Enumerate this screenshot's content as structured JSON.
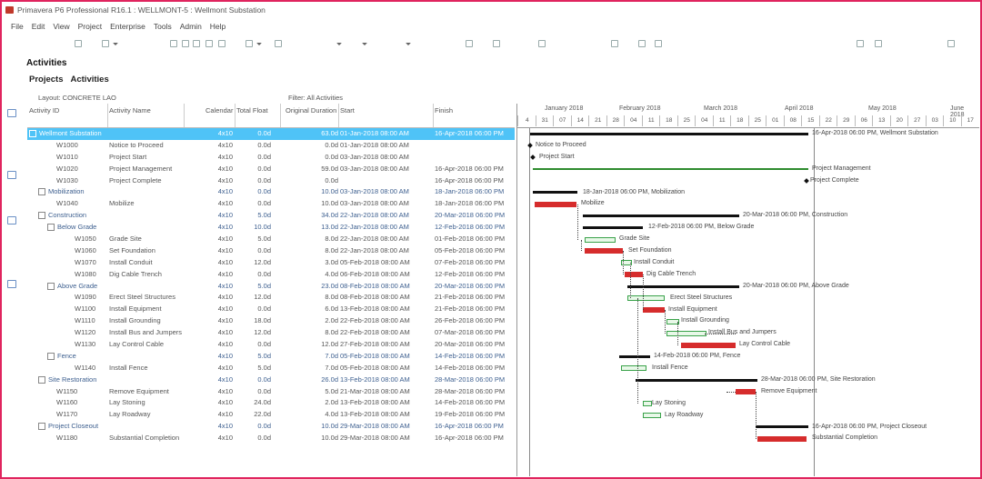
{
  "window": {
    "title": "Primavera P6 Professional R16.1 : WELLMONT-5 : Wellmont Substation"
  },
  "menu": [
    "File",
    "Edit",
    "View",
    "Project",
    "Enterprise",
    "Tools",
    "Admin",
    "Help"
  ],
  "page": {
    "heading": "Activities",
    "tabs": [
      "Projects",
      "Activities"
    ]
  },
  "layout": {
    "label": "Layout: CONCRETE LAO",
    "filter": "Filter: All Activities"
  },
  "columns": {
    "activity_id": "Activity ID",
    "activity_name": "Activity Name",
    "calendar": "Calendar",
    "total_float": "Total Float",
    "original_duration": "Original Duration",
    "start": "Start",
    "finish": "Finish"
  },
  "rows": [
    {
      "id": "Wellmont Substation",
      "name": "",
      "cal": "4x10",
      "tf": "0.0d",
      "od": "63.0d",
      "start": "01-Jan-2018 08:00 AM",
      "finish": "16-Apr-2018 06:00 PM",
      "kind": "project"
    },
    {
      "id": "W1000",
      "name": "Notice to Proceed",
      "cal": "4x10",
      "tf": "0.0d",
      "od": "0.0d",
      "start": "01-Jan-2018 08:00 AM",
      "finish": "",
      "kind": "task"
    },
    {
      "id": "W1010",
      "name": "Project Start",
      "cal": "4x10",
      "tf": "0.0d",
      "od": "0.0d",
      "start": "03-Jan-2018 08:00 AM",
      "finish": "",
      "kind": "task"
    },
    {
      "id": "W1020",
      "name": "Project Management",
      "cal": "4x10",
      "tf": "0.0d",
      "od": "59.0d",
      "start": "03-Jan-2018 08:00 AM",
      "finish": "16-Apr-2018 06:00 PM",
      "kind": "task"
    },
    {
      "id": "W1030",
      "name": "Project Complete",
      "cal": "4x10",
      "tf": "0.0d",
      "od": "0.0d",
      "start": "",
      "finish": "16-Apr-2018 06:00 PM",
      "kind": "task"
    },
    {
      "id": "Mobilization",
      "name": "",
      "cal": "4x10",
      "tf": "0.0d",
      "od": "10.0d",
      "start": "03-Jan-2018 08:00 AM",
      "finish": "18-Jan-2018 06:00 PM",
      "kind": "wbs1"
    },
    {
      "id": "W1040",
      "name": "Mobilize",
      "cal": "4x10",
      "tf": "0.0d",
      "od": "10.0d",
      "start": "03-Jan-2018 08:00 AM",
      "finish": "18-Jan-2018 06:00 PM",
      "kind": "task"
    },
    {
      "id": "Construction",
      "name": "",
      "cal": "4x10",
      "tf": "5.0d",
      "od": "34.0d",
      "start": "22-Jan-2018 08:00 AM",
      "finish": "20-Mar-2018 06:00 PM",
      "kind": "wbs1"
    },
    {
      "id": "Below Grade",
      "name": "",
      "cal": "4x10",
      "tf": "10.0d",
      "od": "13.0d",
      "start": "22-Jan-2018 08:00 AM",
      "finish": "12-Feb-2018 06:00 PM",
      "kind": "wbs2"
    },
    {
      "id": "W1050",
      "name": "Grade Site",
      "cal": "4x10",
      "tf": "5.0d",
      "od": "8.0d",
      "start": "22-Jan-2018 08:00 AM",
      "finish": "01-Feb-2018 06:00 PM",
      "kind": "task2"
    },
    {
      "id": "W1060",
      "name": "Set Foundation",
      "cal": "4x10",
      "tf": "0.0d",
      "od": "8.0d",
      "start": "22-Jan-2018 08:00 AM",
      "finish": "05-Feb-2018 06:00 PM",
      "kind": "task2"
    },
    {
      "id": "W1070",
      "name": "Install Conduit",
      "cal": "4x10",
      "tf": "12.0d",
      "od": "3.0d",
      "start": "05-Feb-2018 08:00 AM",
      "finish": "07-Feb-2018 06:00 PM",
      "kind": "task2"
    },
    {
      "id": "W1080",
      "name": "Dig Cable Trench",
      "cal": "4x10",
      "tf": "0.0d",
      "od": "4.0d",
      "start": "06-Feb-2018 08:00 AM",
      "finish": "12-Feb-2018 06:00 PM",
      "kind": "task2"
    },
    {
      "id": "Above Grade",
      "name": "",
      "cal": "4x10",
      "tf": "5.0d",
      "od": "23.0d",
      "start": "08-Feb-2018 08:00 AM",
      "finish": "20-Mar-2018 06:00 PM",
      "kind": "wbs2"
    },
    {
      "id": "W1090",
      "name": "Erect Steel Structures",
      "cal": "4x10",
      "tf": "12.0d",
      "od": "8.0d",
      "start": "08-Feb-2018 08:00 AM",
      "finish": "21-Feb-2018 06:00 PM",
      "kind": "task2"
    },
    {
      "id": "W1100",
      "name": "Install Equipment",
      "cal": "4x10",
      "tf": "0.0d",
      "od": "6.0d",
      "start": "13-Feb-2018 08:00 AM",
      "finish": "21-Feb-2018 06:00 PM",
      "kind": "task2"
    },
    {
      "id": "W1110",
      "name": "Install Grounding",
      "cal": "4x10",
      "tf": "18.0d",
      "od": "2.0d",
      "start": "22-Feb-2018 08:00 AM",
      "finish": "26-Feb-2018 06:00 PM",
      "kind": "task2"
    },
    {
      "id": "W1120",
      "name": "Install Bus and Jumpers",
      "cal": "4x10",
      "tf": "12.0d",
      "od": "8.0d",
      "start": "22-Feb-2018 08:00 AM",
      "finish": "07-Mar-2018 06:00 PM",
      "kind": "task2"
    },
    {
      "id": "W1130",
      "name": "Lay Control Cable",
      "cal": "4x10",
      "tf": "0.0d",
      "od": "12.0d",
      "start": "27-Feb-2018 08:00 AM",
      "finish": "20-Mar-2018 06:00 PM",
      "kind": "task2"
    },
    {
      "id": "Fence",
      "name": "",
      "cal": "4x10",
      "tf": "5.0d",
      "od": "7.0d",
      "start": "05-Feb-2018 08:00 AM",
      "finish": "14-Feb-2018 06:00 PM",
      "kind": "wbs2"
    },
    {
      "id": "W1140",
      "name": "Install Fence",
      "cal": "4x10",
      "tf": "5.0d",
      "od": "7.0d",
      "start": "05-Feb-2018 08:00 AM",
      "finish": "14-Feb-2018 06:00 PM",
      "kind": "task2"
    },
    {
      "id": "Site Restoration",
      "name": "",
      "cal": "4x10",
      "tf": "0.0d",
      "od": "26.0d",
      "start": "13-Feb-2018 08:00 AM",
      "finish": "28-Mar-2018 06:00 PM",
      "kind": "wbs1"
    },
    {
      "id": "W1150",
      "name": "Remove Equipment",
      "cal": "4x10",
      "tf": "0.0d",
      "od": "5.0d",
      "start": "21-Mar-2018 08:00 AM",
      "finish": "28-Mar-2018 06:00 PM",
      "kind": "task"
    },
    {
      "id": "W1160",
      "name": "Lay Stoning",
      "cal": "4x10",
      "tf": "24.0d",
      "od": "2.0d",
      "start": "13-Feb-2018 08:00 AM",
      "finish": "14-Feb-2018 06:00 PM",
      "kind": "task"
    },
    {
      "id": "W1170",
      "name": "Lay Roadway",
      "cal": "4x10",
      "tf": "22.0d",
      "od": "4.0d",
      "start": "13-Feb-2018 08:00 AM",
      "finish": "19-Feb-2018 06:00 PM",
      "kind": "task"
    },
    {
      "id": "Project Closeout",
      "name": "",
      "cal": "4x10",
      "tf": "0.0d",
      "od": "10.0d",
      "start": "29-Mar-2018 08:00 AM",
      "finish": "16-Apr-2018 06:00 PM",
      "kind": "wbs1"
    },
    {
      "id": "W1180",
      "name": "Substantial Completion",
      "cal": "4x10",
      "tf": "0.0d",
      "od": "10.0d",
      "start": "29-Mar-2018 08:00 AM",
      "finish": "16-Apr-2018 06:00 PM",
      "kind": "task"
    }
  ],
  "timescale": {
    "months": [
      "January 2018",
      "February 2018",
      "March 2018",
      "April 2018",
      "May 2018",
      "June 2018"
    ],
    "weeks": [
      "4",
      "31",
      "07",
      "14",
      "21",
      "28",
      "04",
      "11",
      "18",
      "25",
      "04",
      "11",
      "18",
      "25",
      "01",
      "08",
      "15",
      "22",
      "29",
      "06",
      "13",
      "20",
      "27",
      "03",
      "10",
      "17"
    ]
  },
  "gantt_labels": [
    "16-Apr-2018 06:00 PM, Wellmont Substation",
    "Notice to Proceed",
    "Project Start",
    "Project Management",
    "Project Complete",
    "18-Jan-2018 06:00 PM, Mobilization",
    "Mobilize",
    "20-Mar-2018 06:00 PM, Construction",
    "12-Feb-2018 06:00 PM, Below Grade",
    "Grade Site",
    "Set Foundation",
    "Install Conduit",
    "Dig Cable Trench",
    "20-Mar-2018 06:00 PM, Above Grade",
    "Erect Steel Structures",
    "Install Equipment",
    "Install Grounding",
    "Install Bus and Jumpers",
    "Lay Control Cable",
    "14-Feb-2018 06:00 PM, Fence",
    "Install Fence",
    "28-Mar-2018 06:00 PM, Site Restoration",
    "Remove Equipment",
    "Lay Stoning",
    "Lay Roadway",
    "16-Apr-2018 06:00 PM, Project Closeout",
    "Substantial Completion"
  ],
  "colors": {
    "frame": "#e0245e",
    "selection": "#4fc3f7",
    "critical": "#d62c2c",
    "summary": "#111111",
    "normal_border": "#3aa24a"
  }
}
